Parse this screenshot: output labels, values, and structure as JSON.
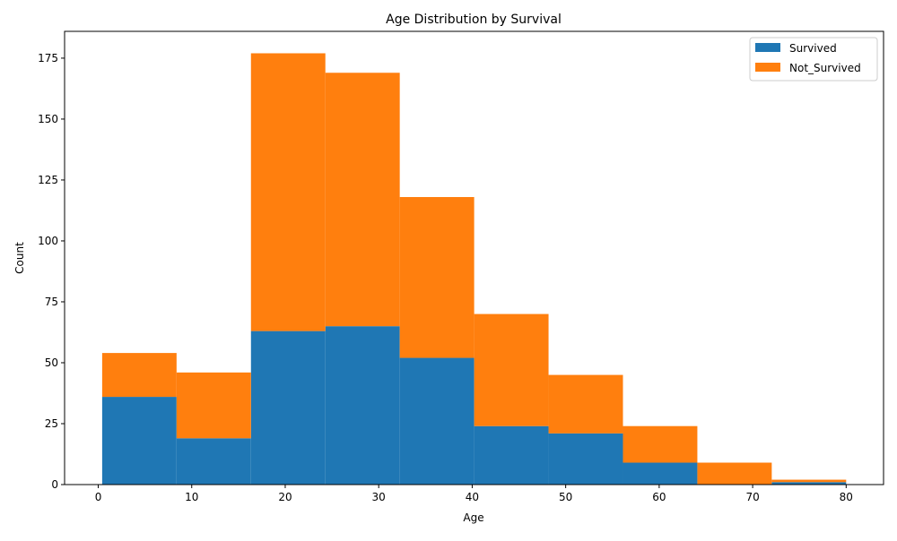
{
  "chart_data": {
    "type": "bar",
    "stacked": true,
    "title": "Age Distribution by Survival",
    "xlabel": "Age",
    "ylabel": "Count",
    "xlim": [
      -3.6,
      84.0
    ],
    "ylim": [
      0,
      186
    ],
    "x_ticks": [
      0,
      10,
      20,
      30,
      40,
      50,
      60,
      70,
      80
    ],
    "y_ticks": [
      0,
      25,
      50,
      75,
      100,
      125,
      150,
      175
    ],
    "bin_edges": [
      0.42,
      8.378,
      16.336,
      24.294,
      32.252,
      40.21,
      48.168,
      56.126,
      64.084,
      72.042,
      80.0
    ],
    "series": [
      {
        "name": "Survived",
        "color": "#1f77b4",
        "values": [
          36,
          19,
          63,
          65,
          52,
          24,
          21,
          9,
          0,
          1
        ]
      },
      {
        "name": "Not_Survived",
        "color": "#ff7f0e",
        "values": [
          18,
          27,
          114,
          104,
          66,
          46,
          24,
          15,
          9,
          1
        ]
      }
    ],
    "grid": false,
    "legend_position": "top-right"
  }
}
